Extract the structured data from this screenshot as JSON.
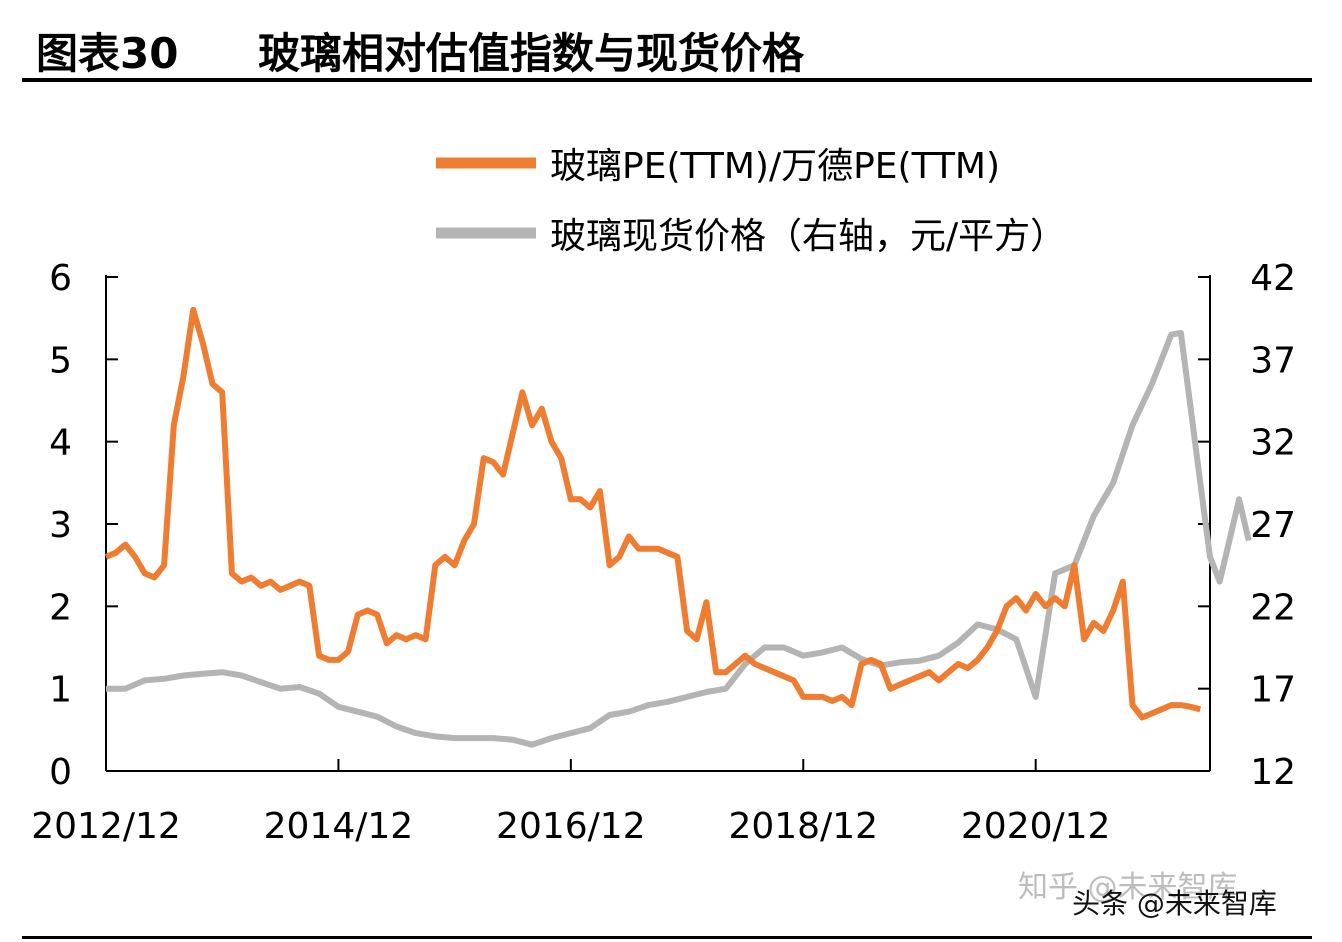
{
  "figure": {
    "number": "图表30",
    "title": "玻璃相对估值指数与现货价格"
  },
  "watermarks": {
    "zhihu": "知乎 @未来智库",
    "toutiao": "头条 @未来智库"
  },
  "chart_data": {
    "type": "line",
    "x_tick_labels": [
      "2012/12",
      "2014/12",
      "2016/12",
      "2018/12",
      "2020/12"
    ],
    "x_range": [
      "2012-12",
      "2022-06"
    ],
    "y_left": {
      "ticks": [
        "0",
        "1",
        "2",
        "3",
        "4",
        "5",
        "6"
      ],
      "min": 0,
      "max": 6
    },
    "y_right": {
      "ticks": [
        "12",
        "17",
        "22",
        "27",
        "32",
        "37",
        "42"
      ],
      "min": 12,
      "max": 42
    },
    "legend_position": "top-center",
    "grid": false,
    "series": [
      {
        "name": "玻璃PE(TTM)/万德PE(TTM)",
        "axis": "left",
        "color": "#EE7D31",
        "points": [
          [
            "2012-12",
            2.6
          ],
          [
            "2013-01",
            2.65
          ],
          [
            "2013-02",
            2.75
          ],
          [
            "2013-03",
            2.6
          ],
          [
            "2013-04",
            2.4
          ],
          [
            "2013-05",
            2.35
          ],
          [
            "2013-06",
            2.5
          ],
          [
            "2013-07",
            4.2
          ],
          [
            "2013-08",
            4.8
          ],
          [
            "2013-09",
            5.6
          ],
          [
            "2013-10",
            5.2
          ],
          [
            "2013-11",
            4.7
          ],
          [
            "2013-12",
            4.6
          ],
          [
            "2014-01",
            2.4
          ],
          [
            "2014-02",
            2.3
          ],
          [
            "2014-03",
            2.35
          ],
          [
            "2014-04",
            2.25
          ],
          [
            "2014-05",
            2.3
          ],
          [
            "2014-06",
            2.2
          ],
          [
            "2014-07",
            2.25
          ],
          [
            "2014-08",
            2.3
          ],
          [
            "2014-09",
            2.25
          ],
          [
            "2014-10",
            1.4
          ],
          [
            "2014-11",
            1.35
          ],
          [
            "2014-12",
            1.35
          ],
          [
            "2015-01",
            1.45
          ],
          [
            "2015-02",
            1.9
          ],
          [
            "2015-03",
            1.95
          ],
          [
            "2015-04",
            1.9
          ],
          [
            "2015-05",
            1.55
          ],
          [
            "2015-06",
            1.65
          ],
          [
            "2015-07",
            1.6
          ],
          [
            "2015-08",
            1.65
          ],
          [
            "2015-09",
            1.6
          ],
          [
            "2015-10",
            2.5
          ],
          [
            "2015-11",
            2.6
          ],
          [
            "2015-12",
            2.5
          ],
          [
            "2016-01",
            2.8
          ],
          [
            "2016-02",
            3.0
          ],
          [
            "2016-03",
            3.8
          ],
          [
            "2016-04",
            3.75
          ],
          [
            "2016-05",
            3.6
          ],
          [
            "2016-06",
            4.1
          ],
          [
            "2016-07",
            4.6
          ],
          [
            "2016-08",
            4.2
          ],
          [
            "2016-09",
            4.4
          ],
          [
            "2016-10",
            4.0
          ],
          [
            "2016-11",
            3.8
          ],
          [
            "2016-12",
            3.3
          ],
          [
            "2017-01",
            3.3
          ],
          [
            "2017-02",
            3.2
          ],
          [
            "2017-03",
            3.4
          ],
          [
            "2017-04",
            2.5
          ],
          [
            "2017-05",
            2.6
          ],
          [
            "2017-06",
            2.85
          ],
          [
            "2017-07",
            2.7
          ],
          [
            "2017-08",
            2.7
          ],
          [
            "2017-09",
            2.7
          ],
          [
            "2017-10",
            2.65
          ],
          [
            "2017-11",
            2.6
          ],
          [
            "2017-12",
            1.7
          ],
          [
            "2018-01",
            1.6
          ],
          [
            "2018-02",
            2.05
          ],
          [
            "2018-03",
            1.2
          ],
          [
            "2018-04",
            1.2
          ],
          [
            "2018-05",
            1.3
          ],
          [
            "2018-06",
            1.4
          ],
          [
            "2018-07",
            1.3
          ],
          [
            "2018-08",
            1.25
          ],
          [
            "2018-09",
            1.2
          ],
          [
            "2018-10",
            1.15
          ],
          [
            "2018-11",
            1.1
          ],
          [
            "2018-12",
            0.9
          ],
          [
            "2019-01",
            0.9
          ],
          [
            "2019-02",
            0.9
          ],
          [
            "2019-03",
            0.85
          ],
          [
            "2019-04",
            0.9
          ],
          [
            "2019-05",
            0.8
          ],
          [
            "2019-06",
            1.3
          ],
          [
            "2019-07",
            1.35
          ],
          [
            "2019-08",
            1.3
          ],
          [
            "2019-09",
            1.0
          ],
          [
            "2019-10",
            1.05
          ],
          [
            "2019-11",
            1.1
          ],
          [
            "2019-12",
            1.15
          ],
          [
            "2020-01",
            1.2
          ],
          [
            "2020-02",
            1.1
          ],
          [
            "2020-03",
            1.2
          ],
          [
            "2020-04",
            1.3
          ],
          [
            "2020-05",
            1.25
          ],
          [
            "2020-06",
            1.35
          ],
          [
            "2020-07",
            1.5
          ],
          [
            "2020-08",
            1.7
          ],
          [
            "2020-09",
            2.0
          ],
          [
            "2020-10",
            2.1
          ],
          [
            "2020-11",
            1.95
          ],
          [
            "2020-12",
            2.15
          ],
          [
            "2021-01",
            2.0
          ],
          [
            "2021-02",
            2.1
          ],
          [
            "2021-03",
            2.0
          ],
          [
            "2021-04",
            2.5
          ],
          [
            "2021-05",
            1.6
          ],
          [
            "2021-06",
            1.8
          ],
          [
            "2021-07",
            1.7
          ],
          [
            "2021-08",
            1.95
          ],
          [
            "2021-09",
            2.3
          ],
          [
            "2021-10",
            0.8
          ],
          [
            "2021-11",
            0.65
          ],
          [
            "2021-12",
            0.7
          ],
          [
            "2022-01",
            0.75
          ],
          [
            "2022-02",
            0.8
          ],
          [
            "2022-03",
            0.8
          ],
          [
            "2022-04",
            0.78
          ],
          [
            "2022-05",
            0.75
          ]
        ]
      },
      {
        "name": "玻璃现货价格（右轴，元/平方）",
        "axis": "right",
        "color": "#B4B4B4",
        "points": [
          [
            "2012-12",
            17.0
          ],
          [
            "2013-02",
            17.0
          ],
          [
            "2013-04",
            17.5
          ],
          [
            "2013-06",
            17.6
          ],
          [
            "2013-08",
            17.8
          ],
          [
            "2013-10",
            17.9
          ],
          [
            "2013-12",
            18.0
          ],
          [
            "2014-02",
            17.8
          ],
          [
            "2014-04",
            17.4
          ],
          [
            "2014-06",
            17.0
          ],
          [
            "2014-08",
            17.1
          ],
          [
            "2014-10",
            16.7
          ],
          [
            "2014-12",
            15.9
          ],
          [
            "2015-02",
            15.6
          ],
          [
            "2015-04",
            15.3
          ],
          [
            "2015-06",
            14.7
          ],
          [
            "2015-08",
            14.3
          ],
          [
            "2015-10",
            14.1
          ],
          [
            "2015-12",
            14.0
          ],
          [
            "2016-02",
            14.0
          ],
          [
            "2016-04",
            14.0
          ],
          [
            "2016-06",
            13.9
          ],
          [
            "2016-08",
            13.6
          ],
          [
            "2016-10",
            14.0
          ],
          [
            "2016-12",
            14.3
          ],
          [
            "2017-02",
            14.6
          ],
          [
            "2017-04",
            15.4
          ],
          [
            "2017-06",
            15.6
          ],
          [
            "2017-08",
            16.0
          ],
          [
            "2017-10",
            16.2
          ],
          [
            "2017-12",
            16.5
          ],
          [
            "2018-02",
            16.8
          ],
          [
            "2018-04",
            17.0
          ],
          [
            "2018-06",
            18.5
          ],
          [
            "2018-08",
            19.5
          ],
          [
            "2018-10",
            19.5
          ],
          [
            "2018-12",
            19.0
          ],
          [
            "2019-02",
            19.2
          ],
          [
            "2019-04",
            19.5
          ],
          [
            "2019-06",
            18.8
          ],
          [
            "2019-08",
            18.4
          ],
          [
            "2019-10",
            18.6
          ],
          [
            "2019-12",
            18.7
          ],
          [
            "2020-02",
            19.0
          ],
          [
            "2020-04",
            19.8
          ],
          [
            "2020-06",
            20.9
          ],
          [
            "2020-08",
            20.6
          ],
          [
            "2020-10",
            20.0
          ],
          [
            "2020-12",
            16.5
          ],
          [
            "2021-02",
            24.0
          ],
          [
            "2021-04",
            24.5
          ],
          [
            "2021-06",
            27.5
          ],
          [
            "2021-08",
            29.5
          ],
          [
            "2021-10",
            33.0
          ],
          [
            "2021-12",
            35.5
          ],
          [
            "2022-02",
            38.5
          ],
          [
            "2022-03",
            38.6
          ],
          [
            "2022-05",
            29.5
          ],
          [
            "2022-06",
            25.0
          ],
          [
            "2022-07",
            23.5
          ],
          [
            "2022-08",
            26.0
          ],
          [
            "2022-09",
            28.5
          ],
          [
            "2022-10",
            26.0
          ]
        ]
      }
    ]
  }
}
